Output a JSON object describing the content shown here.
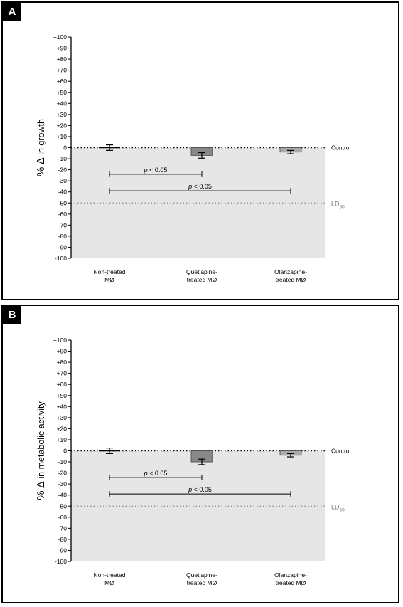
{
  "chart_data": [
    {
      "type": "bar",
      "panel_label": "A",
      "ylabel_symbol": "% Δ",
      "ylabel_rest": " in growth",
      "ylim": [
        -100,
        100
      ],
      "yticks": [
        "+100",
        "+90",
        "+80",
        "+70",
        "+60",
        "+50",
        "+40",
        "+30",
        "+20",
        "+10",
        "0",
        "-10",
        "-20",
        "-30",
        "-40",
        "-50",
        "-60",
        "-70",
        "-80",
        "-90",
        "-100"
      ],
      "categories": [
        {
          "line1": "Non-treated",
          "line2": "MØ"
        },
        {
          "line1": "Quetiapine-",
          "line2": "treated MØ"
        },
        {
          "line1": "Olanzapine-",
          "line2": "treated MØ"
        }
      ],
      "values": [
        0,
        -7,
        -4
      ],
      "errors": [
        2.5,
        2.5,
        1.5
      ],
      "bar_colors": [
        "#ffffff",
        "#888888",
        "#aaaaaa"
      ],
      "reference_lines": [
        {
          "label": "Control",
          "value": 0,
          "color": "#000000"
        },
        {
          "label_main": "LD",
          "label_sub": "50",
          "value": -50,
          "color": "#888888"
        }
      ],
      "shaded_region": {
        "from": 0,
        "to": -100,
        "color": "#e6e6e6"
      },
      "significance": [
        {
          "label_italic": "p",
          "label_rest": " < 0.05",
          "from_category": 0,
          "to_category": 1,
          "y": -24
        },
        {
          "label_italic": "p",
          "label_rest": " < 0.05",
          "from_category": 0,
          "to_category": 2,
          "y": -39
        }
      ]
    },
    {
      "type": "bar",
      "panel_label": "B",
      "ylabel_symbol": "% Δ",
      "ylabel_rest": " in metabolic activity",
      "ylim": [
        -100,
        100
      ],
      "yticks": [
        "+100",
        "+90",
        "+80",
        "+70",
        "+60",
        "+50",
        "+40",
        "+30",
        "+20",
        "+10",
        "0",
        "-10",
        "-20",
        "-30",
        "-40",
        "-50",
        "-60",
        "-70",
        "-80",
        "-90",
        "-100"
      ],
      "categories": [
        {
          "line1": "Non-treated",
          "line2": "MØ"
        },
        {
          "line1": "Quetiapine-",
          "line2": "treated MØ"
        },
        {
          "line1": "Olanzapine-",
          "line2": "treated MØ"
        }
      ],
      "values": [
        0,
        -10,
        -4
      ],
      "errors": [
        2.5,
        2.5,
        1.5
      ],
      "bar_colors": [
        "#ffffff",
        "#888888",
        "#aaaaaa"
      ],
      "reference_lines": [
        {
          "label": "Control",
          "value": 0,
          "color": "#000000"
        },
        {
          "label_main": "LD",
          "label_sub": "50",
          "value": -50,
          "color": "#888888"
        }
      ],
      "shaded_region": {
        "from": 0,
        "to": -100,
        "color": "#e6e6e6"
      },
      "significance": [
        {
          "label_italic": "p",
          "label_rest": " < 0.05",
          "from_category": 0,
          "to_category": 1,
          "y": -24
        },
        {
          "label_italic": "p",
          "label_rest": " < 0.05",
          "from_category": 0,
          "to_category": 2,
          "y": -39
        }
      ]
    }
  ]
}
